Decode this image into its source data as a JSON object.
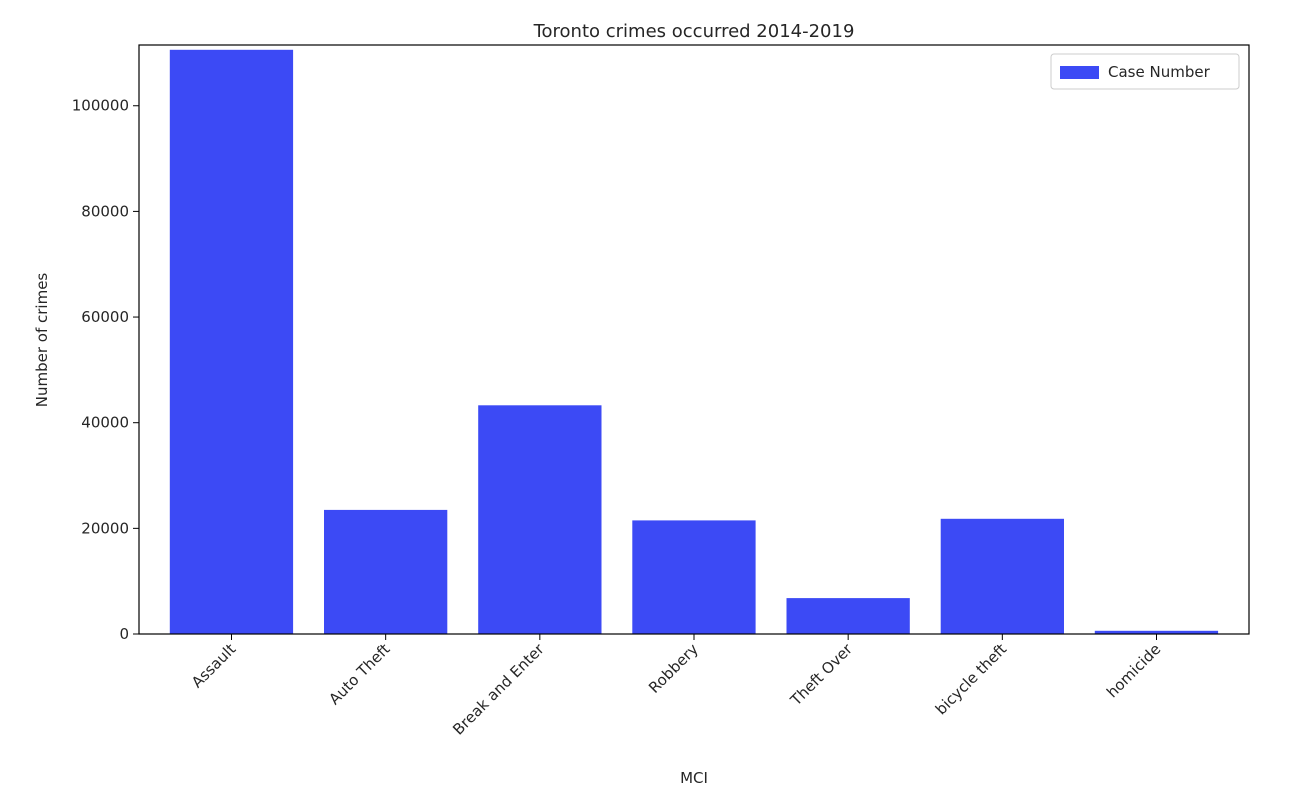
{
  "chart_data": {
    "type": "bar",
    "title": "Toronto crimes occurred 2014-2019",
    "xlabel": "MCI",
    "ylabel": "Number of crimes",
    "categories": [
      "Assault",
      "Auto Theft",
      "Break and Enter",
      "Robbery",
      "Theft Over",
      "bicycle theft",
      "homicide"
    ],
    "series": [
      {
        "name": "Case Number",
        "values": [
          110600,
          23500,
          43300,
          21500,
          6800,
          21800,
          600
        ]
      }
    ],
    "ylim": [
      0,
      111500
    ],
    "yticks": [
      0,
      20000,
      40000,
      60000,
      80000,
      100000
    ],
    "bar_color": "#3c4af5",
    "grid": false,
    "legend_position": "top-right"
  }
}
